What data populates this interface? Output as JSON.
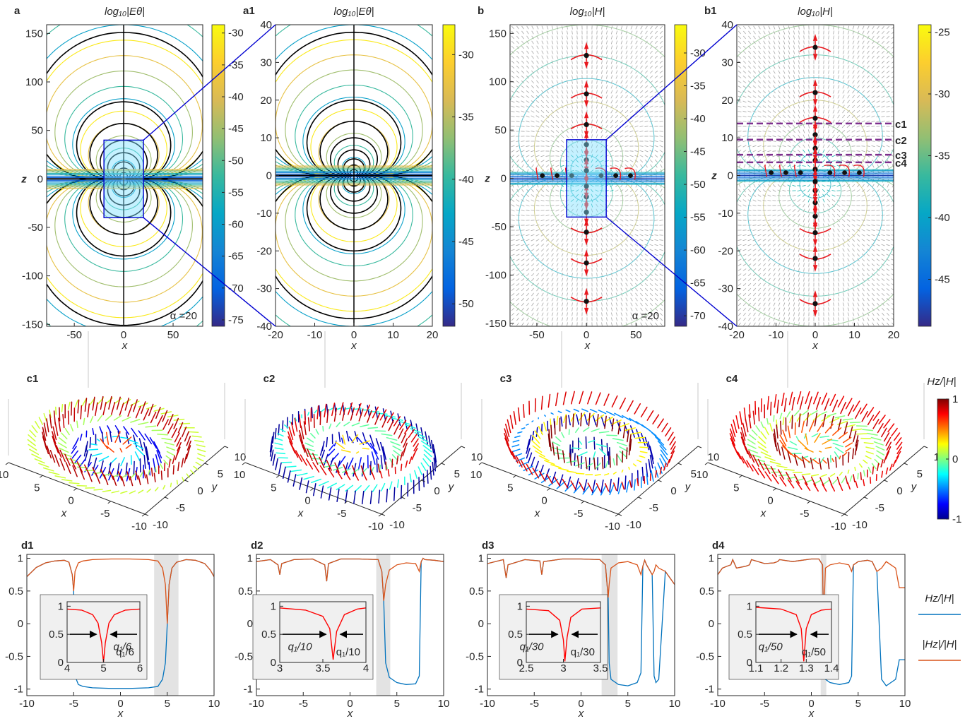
{
  "chart_data": [
    {
      "type": "contour",
      "label": "a",
      "title": "log₁₀|Eθ|",
      "xlabel": "x",
      "ylabel": "z",
      "annotation": "α =20",
      "colormap": "parula",
      "xlim": [
        -78,
        80
      ],
      "ylim": [
        -152,
        159
      ],
      "xticks": [
        -50,
        0,
        50
      ],
      "yticks": [
        -150,
        -100,
        -50,
        0,
        50,
        100,
        150
      ],
      "colorbar": {
        "lim": [
          -76,
          -28.7
        ],
        "ticks": [
          -75,
          -70,
          -65,
          -60,
          -55,
          -50,
          -45,
          -40,
          -35,
          -30
        ]
      }
    },
    {
      "type": "contour",
      "label": "a1",
      "title": "log₁₀|Eθ|",
      "xlabel": "x",
      "colormap": "parula",
      "xlim": [
        -20,
        20
      ],
      "ylim": [
        -40,
        40
      ],
      "xticks": [
        -20,
        -10,
        0,
        10,
        20
      ],
      "yticks": [
        -40,
        -30,
        -20,
        -10,
        0,
        10,
        20,
        30,
        40
      ],
      "colorbar": {
        "lim": [
          -51.8,
          -27.6
        ],
        "ticks": [
          -50,
          -45,
          -40,
          -35,
          -30
        ]
      }
    },
    {
      "type": "quiver",
      "label": "b",
      "title": "log₁₀|H|",
      "xlabel": "x",
      "ylabel": "z",
      "annotation": "α =20",
      "colormap": "parula",
      "xlim": [
        -77,
        79
      ],
      "ylim": [
        -153,
        159
      ],
      "xticks": [
        -50,
        0,
        50
      ],
      "yticks": [
        -150,
        -100,
        -50,
        0,
        50,
        100,
        150
      ],
      "colorbar": {
        "lim": [
          -71.6,
          -25.7
        ],
        "ticks": [
          -70,
          -65,
          -60,
          -55,
          -50,
          -45,
          -40,
          -35,
          -30
        ]
      }
    },
    {
      "type": "quiver",
      "label": "b1",
      "title": "log₁₀|H|",
      "xlabel": "x",
      "ylabel": "z",
      "colormap": "parula",
      "xlim": [
        -20,
        20
      ],
      "ylim": [
        -40,
        40
      ],
      "xticks": [
        -20,
        -10,
        0,
        10,
        20
      ],
      "yticks": [
        -40,
        -30,
        -20,
        -10,
        0,
        10,
        20,
        30,
        40
      ],
      "colorbar": {
        "lim": [
          -48.8,
          -24.4
        ],
        "ticks": [
          -45,
          -40,
          -35,
          -30,
          -25
        ]
      },
      "cut_color": "#7e2f8e",
      "cuts": [
        {
          "label": "c1",
          "z": 13.8
        },
        {
          "label": "c2",
          "z": 9.5
        },
        {
          "label": "c3",
          "z": 5.5
        },
        {
          "label": "c4",
          "z": 3.5
        }
      ]
    },
    {
      "type": "quiver3d",
      "label": "c1",
      "xlabel": "x",
      "ylabel": "y",
      "xlim": [
        -10,
        10
      ],
      "ylim": [
        -10,
        10
      ],
      "xticks": [
        -10,
        -5,
        0,
        5,
        10
      ],
      "yticks": [
        -10,
        -5,
        0,
        5,
        10
      ]
    },
    {
      "type": "quiver3d",
      "label": "c2",
      "xlabel": "x",
      "ylabel": "y",
      "xlim": [
        -10,
        10
      ],
      "ylim": [
        -10,
        10
      ],
      "xticks": [
        -10,
        -5,
        0,
        5,
        10
      ],
      "yticks": [
        -10,
        -5,
        0,
        5,
        10
      ]
    },
    {
      "type": "quiver3d",
      "label": "c3",
      "xlabel": "x",
      "ylabel": "y",
      "xlim": [
        -10,
        10
      ],
      "ylim": [
        -10,
        10
      ],
      "xticks": [
        -10,
        -5,
        0,
        5,
        10
      ],
      "yticks": [
        -10,
        -5,
        0,
        5,
        10
      ]
    },
    {
      "type": "quiver3d",
      "label": "c4",
      "xlabel": "x",
      "ylabel": "y",
      "xlim": [
        -10,
        10
      ],
      "ylim": [
        -10,
        10
      ],
      "xticks": [
        -10,
        -5,
        0,
        5,
        10
      ],
      "yticks": [
        -10,
        -5,
        0,
        5,
        10
      ]
    },
    {
      "type": "colorbar",
      "title": "Hz/|H|",
      "colormap": "jet",
      "lim": [
        -1,
        1
      ],
      "ticks": [
        -1,
        0,
        1
      ]
    },
    {
      "type": "line",
      "label": "d1",
      "xlabel": "x",
      "xlim": [
        -10,
        10
      ],
      "ylim": [
        -1.1,
        1.06
      ],
      "xticks": [
        -10,
        -5,
        0,
        5,
        10
      ],
      "yticks": [
        -1,
        -0.5,
        0,
        0.5,
        1
      ],
      "shade": [
        3.6,
        6.2
      ],
      "x": [
        -10,
        -9,
        -8,
        -7,
        -6,
        -5.5,
        -5.15,
        -5,
        -4.85,
        -4.5,
        -4,
        -3,
        -1,
        1,
        3,
        4,
        4.5,
        4.8,
        5,
        5.2,
        5.5,
        6,
        7,
        8,
        9,
        9.6,
        10
      ],
      "series": [
        {
          "name": "Hz/|H|",
          "color": "#0072bd",
          "values": [
            0.72,
            0.86,
            0.93,
            0.96,
            0.97,
            0.94,
            0.75,
            0.5,
            -0.8,
            -0.93,
            -0.96,
            -0.98,
            -0.99,
            -0.99,
            -0.98,
            -0.96,
            -0.85,
            -0.6,
            0,
            0.6,
            0.85,
            0.94,
            0.98,
            0.97,
            0.92,
            0.82,
            0.72
          ]
        },
        {
          "name": "|Hz|/|H|",
          "color": "#d95319",
          "values": [
            0.72,
            0.86,
            0.93,
            0.96,
            0.97,
            0.94,
            0.75,
            0.5,
            0.8,
            0.93,
            0.96,
            0.98,
            0.99,
            0.99,
            0.98,
            0.96,
            0.85,
            0.6,
            0,
            0.6,
            0.85,
            0.94,
            0.98,
            0.97,
            0.92,
            0.82,
            0.72
          ]
        }
      ],
      "inset": {
        "xlim": [
          4,
          6
        ],
        "ylim": [
          0,
          1.08
        ],
        "xticks": [
          4,
          5,
          6
        ],
        "yticks": [
          0,
          0.5,
          1
        ],
        "color": "#ff0000",
        "annotation": "q₁/6",
        "x": [
          4,
          4.4,
          4.7,
          4.85,
          4.95,
          5,
          5.05,
          5.15,
          5.3,
          5.6,
          6
        ],
        "values": [
          0.95,
          0.93,
          0.85,
          0.7,
          0.35,
          0,
          0.35,
          0.7,
          0.85,
          0.93,
          0.95
        ]
      }
    },
    {
      "type": "line",
      "label": "d2",
      "xlabel": "x",
      "xlim": [
        -10,
        10
      ],
      "ylim": [
        -1.1,
        1.06
      ],
      "xticks": [
        -10,
        -5,
        0,
        5,
        10
      ],
      "yticks": [
        -1,
        -0.5,
        0,
        0.5,
        1
      ],
      "shade": [
        2.8,
        4.3
      ],
      "x": [
        -10,
        -8.5,
        -7.7,
        -7.5,
        -7.3,
        -6,
        -4,
        -2.7,
        -2.5,
        -2.3,
        -1,
        1,
        3,
        3.4,
        3.6,
        3.8,
        4.2,
        5,
        6,
        7,
        7.4,
        7.6,
        7.8,
        8,
        9,
        10
      ],
      "series": [
        {
          "color": "#0072bd",
          "values": [
            0.95,
            0.98,
            0.9,
            0.75,
            0.92,
            0.98,
            0.99,
            0.9,
            0.65,
            0.92,
            0.99,
            0.99,
            0.98,
            0.8,
            0.35,
            -0.6,
            -0.82,
            -0.9,
            -0.93,
            -0.92,
            -0.8,
            0.95,
            1.0,
            0.98,
            0.97,
            0.95
          ]
        },
        {
          "color": "#d95319",
          "values": [
            0.95,
            0.98,
            0.9,
            0.75,
            0.92,
            0.98,
            0.99,
            0.9,
            0.65,
            0.92,
            0.99,
            0.99,
            0.98,
            0.8,
            0.35,
            0.6,
            0.82,
            0.9,
            0.93,
            0.92,
            0.8,
            0.95,
            1.0,
            0.98,
            0.97,
            0.95
          ]
        }
      ],
      "inset": {
        "xlim": [
          3,
          4
        ],
        "ylim": [
          0,
          1.08
        ],
        "xticks": [
          3,
          3.5,
          4
        ],
        "yticks": [
          0,
          0.5,
          1
        ],
        "color": "#ff0000",
        "annotation": "q₁/10",
        "x": [
          3,
          3.3,
          3.5,
          3.58,
          3.62,
          3.66,
          3.75,
          3.9,
          4
        ],
        "values": [
          0.97,
          0.93,
          0.82,
          0.6,
          0.05,
          0.55,
          0.85,
          0.95,
          0.97
        ]
      }
    },
    {
      "type": "line",
      "label": "d3",
      "xlabel": "x",
      "xlim": [
        -10,
        10
      ],
      "ylim": [
        -1.1,
        1.06
      ],
      "xticks": [
        -10,
        -5,
        0,
        5,
        10
      ],
      "yticks": [
        -1,
        -0.5,
        0,
        0.5,
        1
      ],
      "shade": [
        2.2,
        3.9
      ],
      "x": [
        -10,
        -8.3,
        -8,
        -7.8,
        -6,
        -4.4,
        -4.2,
        -4,
        -2,
        0,
        2,
        2.6,
        2.9,
        3,
        3.2,
        4,
        5,
        6,
        6.4,
        6.6,
        6.8,
        7,
        7.6,
        7.8,
        8,
        8.3,
        9,
        10
      ],
      "series": [
        {
          "color": "#0072bd",
          "values": [
            0.92,
            0.98,
            0.7,
            0.9,
            0.98,
            0.96,
            0.75,
            0.95,
            0.99,
            0.99,
            0.98,
            0.9,
            0.4,
            -0.6,
            -0.85,
            -0.93,
            -0.95,
            -0.9,
            -0.75,
            0.88,
            0.97,
            0.9,
            0.75,
            -0.8,
            -0.9,
            -0.85,
            0.8,
            0.6
          ]
        },
        {
          "color": "#d95319",
          "values": [
            0.92,
            0.98,
            0.7,
            0.9,
            0.98,
            0.96,
            0.75,
            0.95,
            0.99,
            0.99,
            0.98,
            0.9,
            0.4,
            0.6,
            0.85,
            0.93,
            0.95,
            0.9,
            0.75,
            0.88,
            0.97,
            0.9,
            0.75,
            0.8,
            0.9,
            0.85,
            0.8,
            0.6
          ]
        }
      ],
      "inset": {
        "xlim": [
          2.5,
          3.5
        ],
        "ylim": [
          0,
          1.08
        ],
        "xticks": [
          2.5,
          3,
          3.5
        ],
        "yticks": [
          0,
          0.5,
          1
        ],
        "color": "#ff0000",
        "annotation": "q₁/30",
        "x": [
          2.5,
          2.8,
          2.95,
          3,
          3.02,
          3.05,
          3.1,
          3.25,
          3.5
        ],
        "values": [
          0.95,
          0.92,
          0.75,
          0.4,
          0.02,
          0.45,
          0.8,
          0.95,
          0.97
        ]
      }
    },
    {
      "type": "line",
      "label": "d4",
      "xlabel": "x",
      "xlim": [
        -10,
        10
      ],
      "ylim": [
        -1.1,
        1.06
      ],
      "xticks": [
        -10,
        -5,
        0,
        5,
        10
      ],
      "yticks": [
        -1,
        -0.5,
        0,
        0.5,
        1
      ],
      "shade": [
        1.0,
        1.6
      ],
      "x": [
        -10,
        -9.5,
        -9,
        -8.6,
        -8.4,
        -8,
        -7,
        -6.6,
        -6.4,
        -5,
        -4,
        -3.6,
        -3.4,
        -2,
        -1,
        0,
        0.8,
        1.2,
        1.3,
        1.5,
        2,
        3,
        4,
        4.3,
        4.5,
        5,
        6,
        6.5,
        7,
        7.5,
        8,
        8.5,
        9,
        9.4,
        10
      ],
      "series": [
        {
          "color": "#0072bd",
          "values": [
            0.75,
            0.85,
            0.88,
            0.9,
            0.98,
            0.85,
            0.88,
            0.9,
            0.98,
            0.92,
            0.93,
            0.95,
            0.98,
            0.95,
            0.97,
            0.99,
            0.99,
            0.9,
            0,
            -0.85,
            -0.9,
            -0.93,
            -0.9,
            -0.8,
            0.9,
            0.95,
            0.97,
            0.95,
            0.8,
            -0.85,
            -0.95,
            -0.9,
            -0.85,
            -0.55,
            -0.55
          ]
        },
        {
          "color": "#d95319",
          "values": [
            0.75,
            0.85,
            0.88,
            0.9,
            0.98,
            0.85,
            0.88,
            0.9,
            0.98,
            0.92,
            0.93,
            0.95,
            0.98,
            0.95,
            0.97,
            0.99,
            0.99,
            0.9,
            0,
            0.85,
            0.9,
            0.93,
            0.9,
            0.8,
            0.9,
            0.95,
            0.97,
            0.95,
            0.8,
            0.85,
            0.95,
            0.9,
            0.85,
            0.55,
            0.55
          ]
        }
      ],
      "inset": {
        "xlim": [
          1.1,
          1.4
        ],
        "ylim": [
          0,
          1.08
        ],
        "xticks": [
          1.1,
          1.2,
          1.3,
          1.4
        ],
        "yticks": [
          0,
          0.5,
          1
        ],
        "color": "#ff0000",
        "annotation": "q₁/50",
        "x": [
          1.1,
          1.2,
          1.26,
          1.28,
          1.29,
          1.3,
          1.32,
          1.36,
          1.4
        ],
        "values": [
          0.98,
          0.95,
          0.85,
          0.6,
          0.02,
          0.6,
          0.85,
          0.93,
          0.95
        ]
      }
    }
  ]
}
